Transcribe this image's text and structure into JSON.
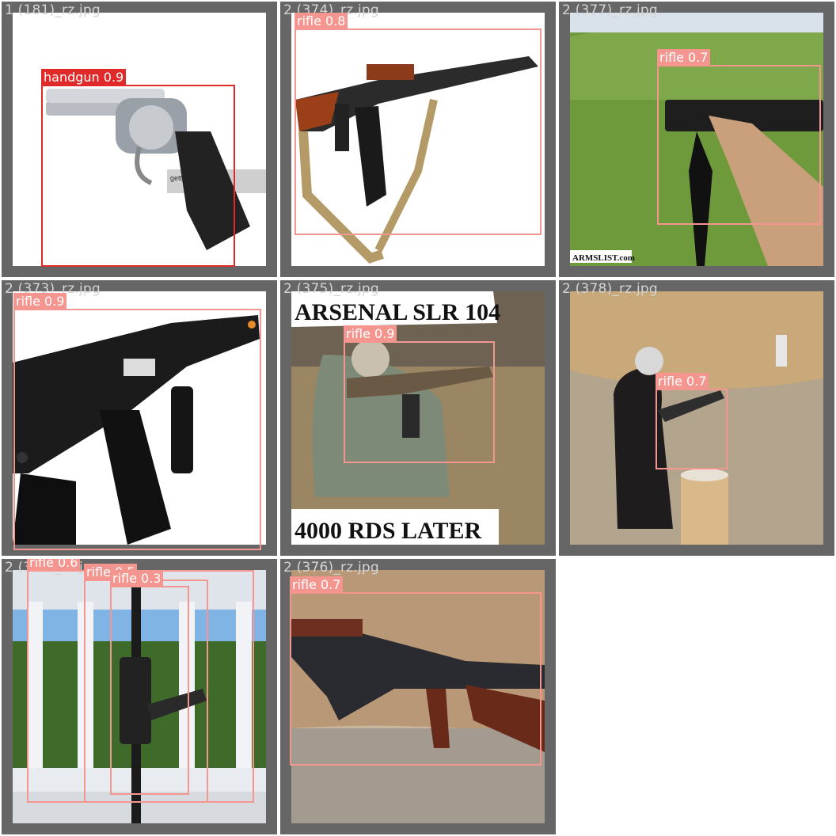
{
  "grid": {
    "tiles": [
      {
        "filename": "1 (181)_rz.jpg",
        "photo": "chrome revolver with black grip on white background",
        "watermark": "gettyimages",
        "detections": [
          {
            "label": "handgun 0.9",
            "color": "#e02a2a"
          }
        ]
      },
      {
        "filename": "2 (374)_rz.jpg",
        "photo": "AK rifle with wooden furniture and canvas sling",
        "detections": [
          {
            "label": "rifle 0.8",
            "color": "#f5958f"
          }
        ]
      },
      {
        "filename": "2 (377)_rz.jpg",
        "photo": "person aiming black rifle in grass field",
        "watermark": "ARMSLIST.com",
        "detections": [
          {
            "label": "rifle 0.7",
            "color": "#f5958f"
          }
        ]
      },
      {
        "filename": "2 (373)_rz.jpg",
        "photo": "black AK style rifle with rail and foregrip",
        "detections": [
          {
            "label": "rifle 0.9",
            "color": "#f5958f"
          }
        ]
      },
      {
        "filename": "2 (375)_rz.jpg",
        "photo": "soldier in camo aiming rifle",
        "banner_top": "ARSENAL SLR 104",
        "banner_bottom": "4000 RDS LATER",
        "detections": [
          {
            "label": "rifle 0.9",
            "color": "#f5958f"
          }
        ]
      },
      {
        "filename": "2 (378)_rz.jpg",
        "photo": "person shooting rifle at outdoor range",
        "detections": [
          {
            "label": "rifle 0.7",
            "color": "#f5958f"
          }
        ]
      },
      {
        "filename": "2 (372)_rz.jpg",
        "photo": "rifle leaning on white fence with hedge",
        "detections": [
          {
            "label": "rifle 0.6",
            "color": "#f5958f"
          },
          {
            "label": "rifle 0.5",
            "color": "#f5958f"
          },
          {
            "label": "rifle 0.3",
            "color": "#f5958f"
          }
        ]
      },
      {
        "filename": "2 (376)_rz.jpg",
        "photo": "AK rifle on gravel against sandstone",
        "detections": [
          {
            "label": "rifle 0.7",
            "color": "#f5958f"
          }
        ]
      }
    ]
  }
}
